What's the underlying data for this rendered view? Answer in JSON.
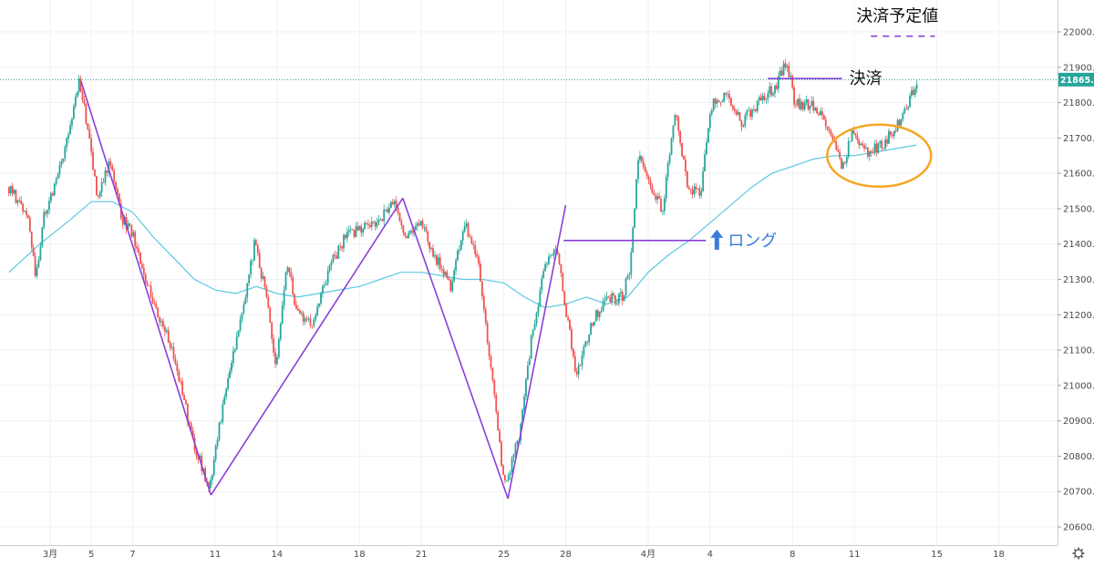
{
  "chart_data": {
    "type": "candlestick",
    "title": "",
    "xlabel": "",
    "ylabel": "",
    "ylim": [
      20540,
      22080
    ],
    "y_ticks": [
      20600,
      20700,
      20800,
      20900,
      21000,
      21100,
      21200,
      21300,
      21400,
      21500,
      21600,
      21700,
      21800,
      21900,
      22000
    ],
    "y_tick_labels": [
      "20600.0",
      "20700.0",
      "20800.0",
      "20900.0",
      "21000.0",
      "21100.0",
      "21200.0",
      "21300.0",
      "21400.0",
      "21500.0",
      "21600.0",
      "21700.0",
      "21800.0",
      "21900.0",
      "22000.0"
    ],
    "x_ticks": [
      {
        "label": "3月",
        "day": 0
      },
      {
        "label": "5",
        "day": 2
      },
      {
        "label": "7",
        "day": 4
      },
      {
        "label": "11",
        "day": 8
      },
      {
        "label": "14",
        "day": 11
      },
      {
        "label": "18",
        "day": 15
      },
      {
        "label": "21",
        "day": 18
      },
      {
        "label": "25",
        "day": 22
      },
      {
        "label": "28",
        "day": 25
      },
      {
        "label": "4月",
        "day": 29
      },
      {
        "label": "4",
        "day": 32
      },
      {
        "label": "8",
        "day": 36
      },
      {
        "label": "11",
        "day": 39
      },
      {
        "label": "15",
        "day": 43
      },
      {
        "label": "18",
        "day": 46
      }
    ],
    "price_path": [
      {
        "day": -2.0,
        "v": 21560
      },
      {
        "day": -1.4,
        "v": 21520
      },
      {
        "day": -1.0,
        "v": 21470
      },
      {
        "day": -0.6,
        "v": 21310
      },
      {
        "day": -0.2,
        "v": 21480
      },
      {
        "day": 0.5,
        "v": 21600
      },
      {
        "day": 1.0,
        "v": 21730
      },
      {
        "day": 1.5,
        "v": 21860
      },
      {
        "day": 2.0,
        "v": 21700
      },
      {
        "day": 2.4,
        "v": 21520
      },
      {
        "day": 3.0,
        "v": 21640
      },
      {
        "day": 3.5,
        "v": 21480
      },
      {
        "day": 4.0,
        "v": 21440
      },
      {
        "day": 5.0,
        "v": 21250
      },
      {
        "day": 6.0,
        "v": 21100
      },
      {
        "day": 7.0,
        "v": 20850
      },
      {
        "day": 7.8,
        "v": 20700
      },
      {
        "day": 8.5,
        "v": 20960
      },
      {
        "day": 9.2,
        "v": 21150
      },
      {
        "day": 10.0,
        "v": 21400
      },
      {
        "day": 10.6,
        "v": 21250
      },
      {
        "day": 11.0,
        "v": 21050
      },
      {
        "day": 11.6,
        "v": 21350
      },
      {
        "day": 12.0,
        "v": 21220
      },
      {
        "day": 12.8,
        "v": 21160
      },
      {
        "day": 13.6,
        "v": 21330
      },
      {
        "day": 14.4,
        "v": 21420
      },
      {
        "day": 15.2,
        "v": 21450
      },
      {
        "day": 16.0,
        "v": 21460
      },
      {
        "day": 16.8,
        "v": 21520
      },
      {
        "day": 17.4,
        "v": 21410
      },
      {
        "day": 18.0,
        "v": 21470
      },
      {
        "day": 18.8,
        "v": 21360
      },
      {
        "day": 19.5,
        "v": 21280
      },
      {
        "day": 20.2,
        "v": 21460
      },
      {
        "day": 20.8,
        "v": 21360
      },
      {
        "day": 21.5,
        "v": 21030
      },
      {
        "day": 22.1,
        "v": 20710
      },
      {
        "day": 22.8,
        "v": 20850
      },
      {
        "day": 23.4,
        "v": 21120
      },
      {
        "day": 24.0,
        "v": 21320
      },
      {
        "day": 24.6,
        "v": 21400
      },
      {
        "day": 25.0,
        "v": 21250
      },
      {
        "day": 25.6,
        "v": 21030
      },
      {
        "day": 26.3,
        "v": 21170
      },
      {
        "day": 27.0,
        "v": 21240
      },
      {
        "day": 27.8,
        "v": 21250
      },
      {
        "day": 28.2,
        "v": 21320
      },
      {
        "day": 28.6,
        "v": 21650
      },
      {
        "day": 29.2,
        "v": 21560
      },
      {
        "day": 29.8,
        "v": 21500
      },
      {
        "day": 30.4,
        "v": 21780
      },
      {
        "day": 31.0,
        "v": 21560
      },
      {
        "day": 31.6,
        "v": 21540
      },
      {
        "day": 32.2,
        "v": 21800
      },
      {
        "day": 33.0,
        "v": 21820
      },
      {
        "day": 33.6,
        "v": 21740
      },
      {
        "day": 34.4,
        "v": 21800
      },
      {
        "day": 35.2,
        "v": 21840
      },
      {
        "day": 35.8,
        "v": 21920
      },
      {
        "day": 36.2,
        "v": 21800
      },
      {
        "day": 37.0,
        "v": 21790
      },
      {
        "day": 37.8,
        "v": 21740
      },
      {
        "day": 38.5,
        "v": 21620
      },
      {
        "day": 39.0,
        "v": 21720
      },
      {
        "day": 39.6,
        "v": 21660
      },
      {
        "day": 40.4,
        "v": 21680
      },
      {
        "day": 41.0,
        "v": 21720
      },
      {
        "day": 41.6,
        "v": 21780
      },
      {
        "day": 42.1,
        "v": 21860
      }
    ],
    "moving_average": {
      "name": "",
      "color": "#5bc8e0",
      "points": [
        {
          "day": -2.0,
          "v": 21320
        },
        {
          "day": -0.5,
          "v": 21400
        },
        {
          "day": 1.0,
          "v": 21470
        },
        {
          "day": 2.0,
          "v": 21520
        },
        {
          "day": 3.0,
          "v": 21520
        },
        {
          "day": 4.0,
          "v": 21490
        },
        {
          "day": 5.0,
          "v": 21420
        },
        {
          "day": 6.0,
          "v": 21360
        },
        {
          "day": 7.0,
          "v": 21300
        },
        {
          "day": 8.0,
          "v": 21270
        },
        {
          "day": 9.0,
          "v": 21260
        },
        {
          "day": 10.0,
          "v": 21280
        },
        {
          "day": 11.0,
          "v": 21260
        },
        {
          "day": 12.0,
          "v": 21250
        },
        {
          "day": 13.0,
          "v": 21260
        },
        {
          "day": 14.0,
          "v": 21270
        },
        {
          "day": 15.0,
          "v": 21280
        },
        {
          "day": 16.0,
          "v": 21300
        },
        {
          "day": 17.0,
          "v": 21320
        },
        {
          "day": 18.0,
          "v": 21320
        },
        {
          "day": 19.0,
          "v": 21310
        },
        {
          "day": 20.0,
          "v": 21300
        },
        {
          "day": 21.0,
          "v": 21300
        },
        {
          "day": 22.0,
          "v": 21290
        },
        {
          "day": 23.0,
          "v": 21250
        },
        {
          "day": 24.0,
          "v": 21220
        },
        {
          "day": 25.0,
          "v": 21230
        },
        {
          "day": 26.0,
          "v": 21250
        },
        {
          "day": 27.0,
          "v": 21230
        },
        {
          "day": 28.0,
          "v": 21250
        },
        {
          "day": 29.0,
          "v": 21320
        },
        {
          "day": 30.0,
          "v": 21370
        },
        {
          "day": 31.0,
          "v": 21410
        },
        {
          "day": 32.0,
          "v": 21460
        },
        {
          "day": 33.0,
          "v": 21510
        },
        {
          "day": 34.0,
          "v": 21560
        },
        {
          "day": 35.0,
          "v": 21600
        },
        {
          "day": 36.0,
          "v": 21620
        },
        {
          "day": 37.0,
          "v": 21640
        },
        {
          "day": 38.0,
          "v": 21650
        },
        {
          "day": 39.0,
          "v": 21650
        },
        {
          "day": 40.0,
          "v": 21660
        },
        {
          "day": 41.0,
          "v": 21670
        },
        {
          "day": 42.0,
          "v": 21680
        }
      ]
    },
    "current_price": {
      "value": 21865,
      "label": "21865.0",
      "color": "#26a69a"
    },
    "pattern_lines": [
      {
        "name": "wave-1",
        "color": "#8b3fd9",
        "points": [
          {
            "day": 1.5,
            "v": 21860
          },
          {
            "day": 7.8,
            "v": 20690
          }
        ]
      },
      {
        "name": "wave-2",
        "color": "#8b3fd9",
        "points": [
          {
            "day": 7.8,
            "v": 20690
          },
          {
            "day": 17.1,
            "v": 21530
          }
        ]
      },
      {
        "name": "wave-3",
        "color": "#8b3fd9",
        "points": [
          {
            "day": 17.1,
            "v": 21530
          },
          {
            "day": 22.2,
            "v": 20680
          }
        ]
      },
      {
        "name": "wave-4",
        "color": "#8b3fd9",
        "points": [
          {
            "day": 22.2,
            "v": 20680
          },
          {
            "day": 25.0,
            "v": 21510
          }
        ]
      }
    ],
    "annotations": {
      "long_label": "ロング",
      "long_color": "#3a7bdc",
      "long_line": {
        "day_start": 24.9,
        "day_end": 31.8,
        "v": 21410
      },
      "settle_label": "決済",
      "settle_line": {
        "day_start": 34.8,
        "day_end": 38.4,
        "v": 21868
      },
      "target_label": "決済予定値",
      "target_line": {
        "day_start": 39.8,
        "day_end": 42.9,
        "v": 21988
      },
      "ellipse": {
        "day_center": 40.2,
        "v_center": 21650,
        "color": "#f5a623"
      }
    },
    "colors": {
      "up": "#26a69a",
      "down": "#ef5350",
      "accent": "#8b3fd9",
      "grid": "#eef1f4"
    },
    "grid": true,
    "legend": "none",
    "settings_icon": "gear-icon"
  }
}
